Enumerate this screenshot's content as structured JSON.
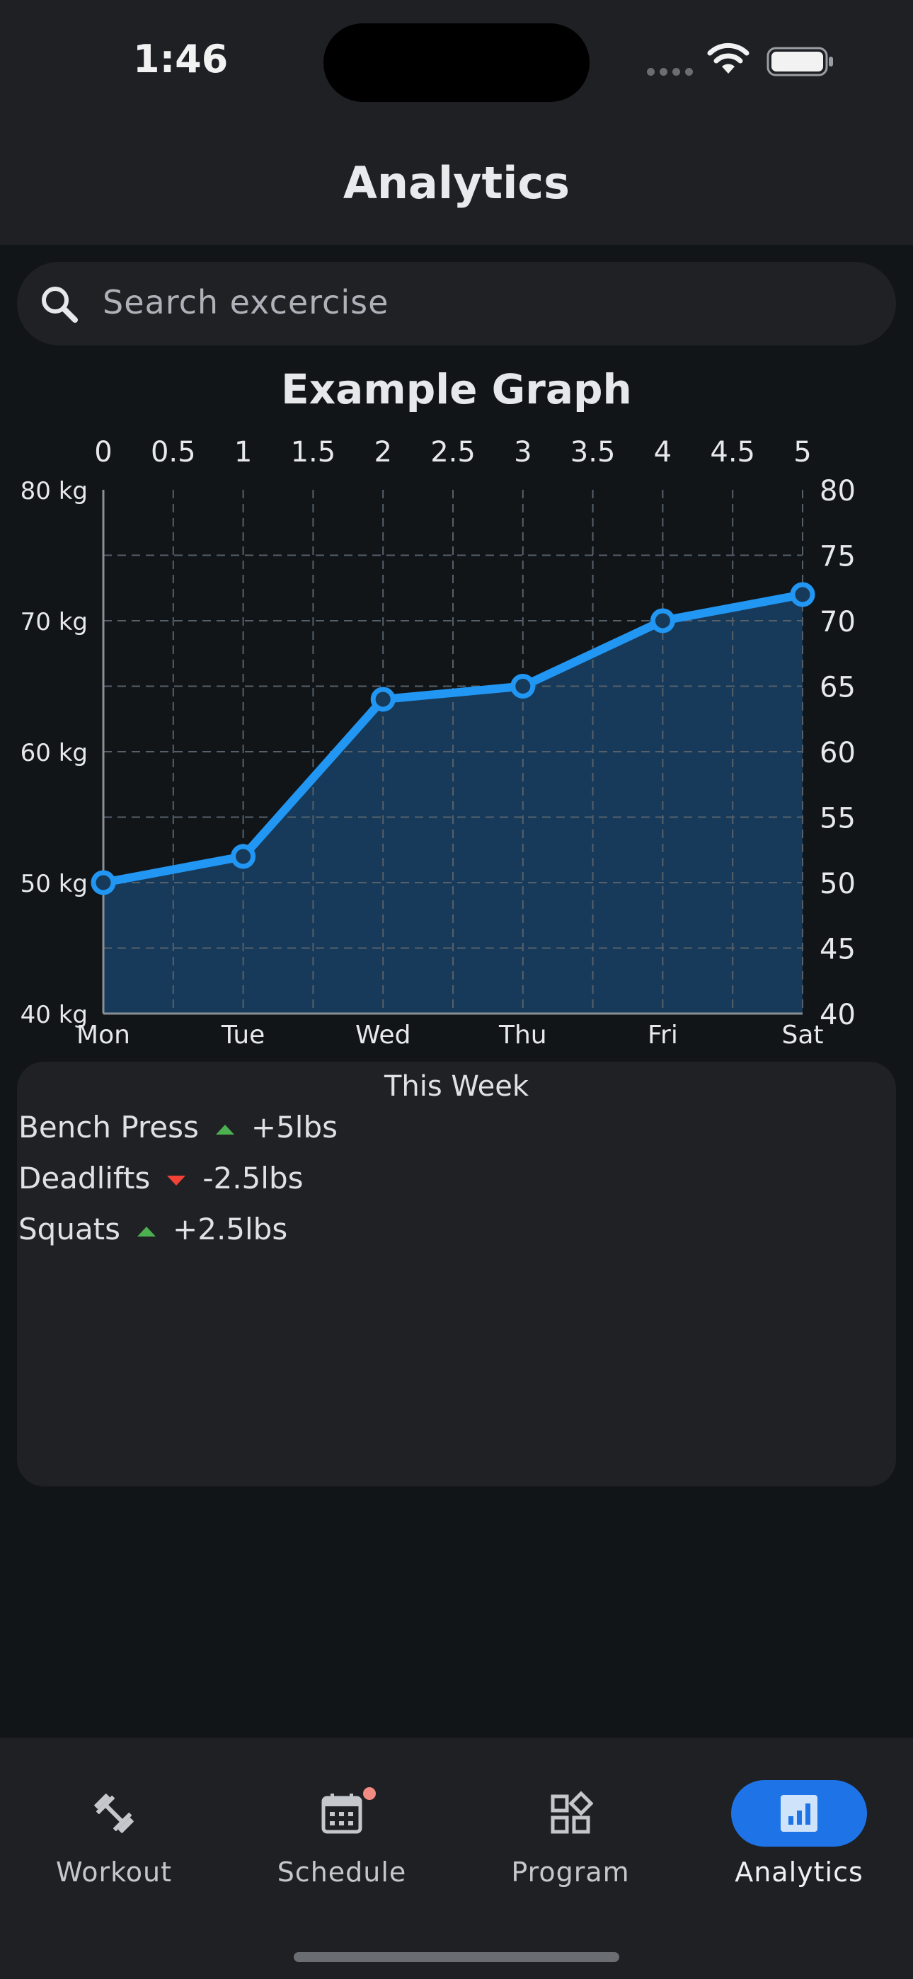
{
  "status_bar": {
    "time": "1:46",
    "wifi_icon": "wifi-icon",
    "battery_icon": "battery-icon"
  },
  "header": {
    "title": "Analytics"
  },
  "search": {
    "placeholder": "Search excercise",
    "icon": "search-icon"
  },
  "chart_data": {
    "type": "line",
    "title": "Example Graph",
    "categories": [
      "Mon",
      "Tue",
      "Wed",
      "Thu",
      "Fri",
      "Sat"
    ],
    "x": [
      0,
      1,
      2,
      3,
      4,
      5
    ],
    "series": [
      {
        "values": [
          50,
          52,
          64,
          65,
          70,
          72
        ],
        "color": "#2196f3"
      }
    ],
    "xlim": [
      0,
      5
    ],
    "ylim": [
      40,
      80
    ],
    "top_ticks": [
      "0",
      "0.5",
      "1",
      "1.5",
      "2",
      "2.5",
      "3",
      "3.5",
      "4",
      "4.5",
      "5"
    ],
    "left_ticks": [
      {
        "value": 40,
        "label": "40 kg"
      },
      {
        "value": 50,
        "label": "50 kg"
      },
      {
        "value": 60,
        "label": "60 kg"
      },
      {
        "value": 70,
        "label": "70 kg"
      },
      {
        "value": 80,
        "label": "80 kg"
      }
    ],
    "right_ticks": [
      "40",
      "45",
      "50",
      "55",
      "60",
      "65",
      "70",
      "75",
      "80"
    ],
    "grid": true,
    "area_fill": "#173a5a"
  },
  "week_summary": {
    "title": "This Week",
    "items": [
      {
        "name": "Bench Press",
        "direction": "up",
        "change": "+5lbs"
      },
      {
        "name": "Deadlifts",
        "direction": "down",
        "change": "-2.5lbs"
      },
      {
        "name": "Squats",
        "direction": "up",
        "change": "+2.5lbs"
      }
    ],
    "up_color": "#4caf50",
    "down_color": "#f44336"
  },
  "nav": {
    "items": [
      {
        "label": "Workout",
        "icon": "dumbbell-icon"
      },
      {
        "label": "Schedule",
        "icon": "calendar-icon",
        "badge": true
      },
      {
        "label": "Program",
        "icon": "widgets-icon"
      },
      {
        "label": "Analytics",
        "icon": "analytics-icon",
        "active": true
      }
    ],
    "accent": "#1e74e6",
    "badge_color": "#f28b82"
  }
}
